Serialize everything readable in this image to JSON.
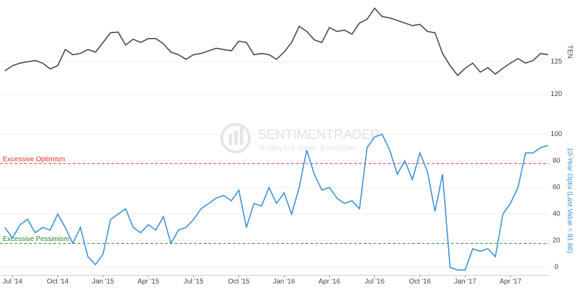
{
  "chart_data": [
    {
      "type": "line",
      "axis_label": "TEN",
      "color": "#444444",
      "values": [
        123.6,
        124.4,
        124.8,
        125,
        125.2,
        124.8,
        123.9,
        124.4,
        126.9,
        126.1,
        126.3,
        126.9,
        126.5,
        128,
        129.5,
        129.6,
        127.6,
        128.5,
        128,
        128.6,
        128.6,
        127.8,
        126.5,
        126.1,
        125.4,
        126.1,
        126.3,
        126.7,
        127.1,
        126.9,
        126.7,
        128.2,
        128,
        126.1,
        126.3,
        126.1,
        125.4,
        126.5,
        128,
        130.5,
        129.7,
        128.4,
        128,
        130.3,
        129.7,
        129.9,
        129.3,
        131,
        131.6,
        133.3,
        132,
        131.8,
        131.4,
        131,
        130.6,
        130.8,
        129.7,
        129.5,
        126.3,
        124.4,
        122.9,
        124,
        124.8,
        123.4,
        124.1,
        123.1,
        124,
        124.8,
        125.5,
        124.8,
        125.2,
        126.3,
        126.1
      ],
      "ylim": [
        118,
        133.5
      ],
      "yticks": [
        120,
        125
      ],
      "grid": true
    },
    {
      "type": "line",
      "axis_label": "10-Year Optix (Last Value = 91.66)",
      "color": "#3a8fd8",
      "watermark": {
        "brand": "SENTIMENTRADER",
        "tagline": "Analysis over Emotion"
      },
      "categories": [
        null,
        "Jul '14",
        null,
        null,
        null,
        null,
        null,
        "Oct '14",
        null,
        null,
        null,
        null,
        null,
        "Jan '15",
        null,
        null,
        null,
        null,
        null,
        "Apr '15",
        null,
        null,
        null,
        null,
        null,
        "Jul '15",
        null,
        null,
        null,
        null,
        null,
        "Oct '15",
        null,
        null,
        null,
        null,
        null,
        "Jan '16",
        null,
        null,
        null,
        null,
        null,
        "Apr '16",
        null,
        null,
        null,
        null,
        null,
        "Jul '16",
        null,
        null,
        null,
        null,
        null,
        "Oct '16",
        null,
        null,
        null,
        null,
        null,
        "Jan '17",
        null,
        null,
        null,
        null,
        null,
        "Apr '17",
        null,
        null,
        null,
        null,
        null
      ],
      "values": [
        30,
        22,
        32,
        36,
        26,
        30,
        28,
        40,
        30,
        18,
        30,
        8,
        2,
        10,
        36,
        40,
        44,
        30,
        26,
        32,
        28,
        38,
        18,
        28,
        30,
        36,
        44,
        48,
        52,
        54,
        50,
        58,
        30,
        48,
        46,
        60,
        48,
        56,
        40,
        60,
        88,
        70,
        58,
        60,
        52,
        48,
        50,
        44,
        90,
        98,
        100,
        88,
        70,
        80,
        66,
        86,
        72,
        42,
        70,
        0,
        -2,
        -2,
        14,
        12,
        14,
        8,
        40,
        48,
        60,
        86,
        86,
        90,
        91.66
      ],
      "ylim": [
        -6,
        108
      ],
      "yticks": [
        0,
        20,
        40,
        60,
        80,
        100
      ],
      "grid": true,
      "reference_lines": [
        {
          "label": "Excessive Optimism",
          "value": 78,
          "color": "#e03030"
        },
        {
          "label": "Excessive Pessimism",
          "value": 18,
          "color": "#2a8a2a"
        }
      ]
    }
  ]
}
